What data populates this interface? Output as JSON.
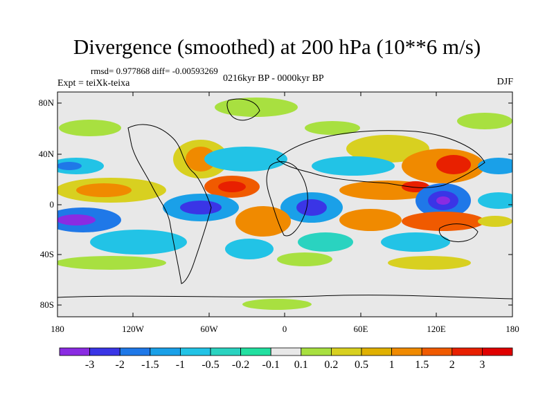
{
  "title": "Divergence (smoothed) at 200 hPa (10**6 m/s)",
  "stats": "rmsd= 0.977868 diff= -0.00593269",
  "subtitle": "0216kyr BP - 0000kyr BP",
  "experiment": "Expt = teiXk-teixa",
  "season": "DJF",
  "y_ticks": [
    "80N",
    "40N",
    "0",
    "40S",
    "80S"
  ],
  "x_ticks": [
    "180",
    "120W",
    "60W",
    "0",
    "60E",
    "120E",
    "180"
  ],
  "colorbar": {
    "labels": [
      "-3",
      "-2",
      "-1.5",
      "-1",
      "-0.5",
      "-0.2",
      "-0.1",
      "0.1",
      "0.2",
      "0.5",
      "1",
      "1.5",
      "2",
      "3"
    ],
    "colors": [
      "#8a2be2",
      "#3a35e6",
      "#1f78e8",
      "#1aa0e8",
      "#22c3e6",
      "#2ad3c0",
      "#22e0a0",
      "#e8e8e8",
      "#a8e040",
      "#d8d020",
      "#e0b000",
      "#f08a00",
      "#f05a00",
      "#e82000",
      "#e00000"
    ]
  }
}
